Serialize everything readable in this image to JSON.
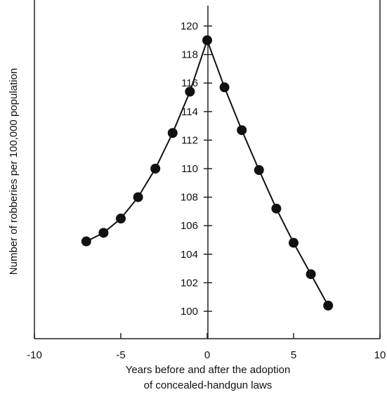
{
  "chart_data": {
    "type": "line",
    "title": "",
    "xlabel_line1": "Years before and after the adoption",
    "xlabel_line2": "of concealed-handgun laws",
    "ylabel": "Number of robberies per 100,000 population",
    "xlim": [
      -10,
      10
    ],
    "ylim": [
      99,
      121
    ],
    "xticks": [
      -10,
      -5,
      0,
      5,
      10
    ],
    "xtick_labels": [
      "-10",
      "-5",
      "0",
      "5",
      "10"
    ],
    "yticks": [
      100,
      102,
      104,
      106,
      108,
      110,
      112,
      114,
      116,
      118,
      120
    ],
    "ytick_labels": [
      "100",
      "102",
      "104",
      "106",
      "108",
      "110",
      "112",
      "114",
      "116",
      "118",
      "120"
    ],
    "grid": false,
    "legend": "none",
    "series": [
      {
        "x": [
          -7,
          -6,
          -5,
          -4,
          -3,
          -2,
          -1,
          0,
          1,
          2,
          3,
          4,
          5,
          6,
          7
        ],
        "y": [
          104.9,
          105.5,
          106.5,
          108.0,
          110.0,
          112.5,
          115.4,
          119.0,
          115.7,
          112.7,
          109.9,
          107.2,
          104.8,
          102.6,
          100.4
        ]
      }
    ],
    "colors": {
      "line": "#111111",
      "marker": "#111111"
    }
  }
}
